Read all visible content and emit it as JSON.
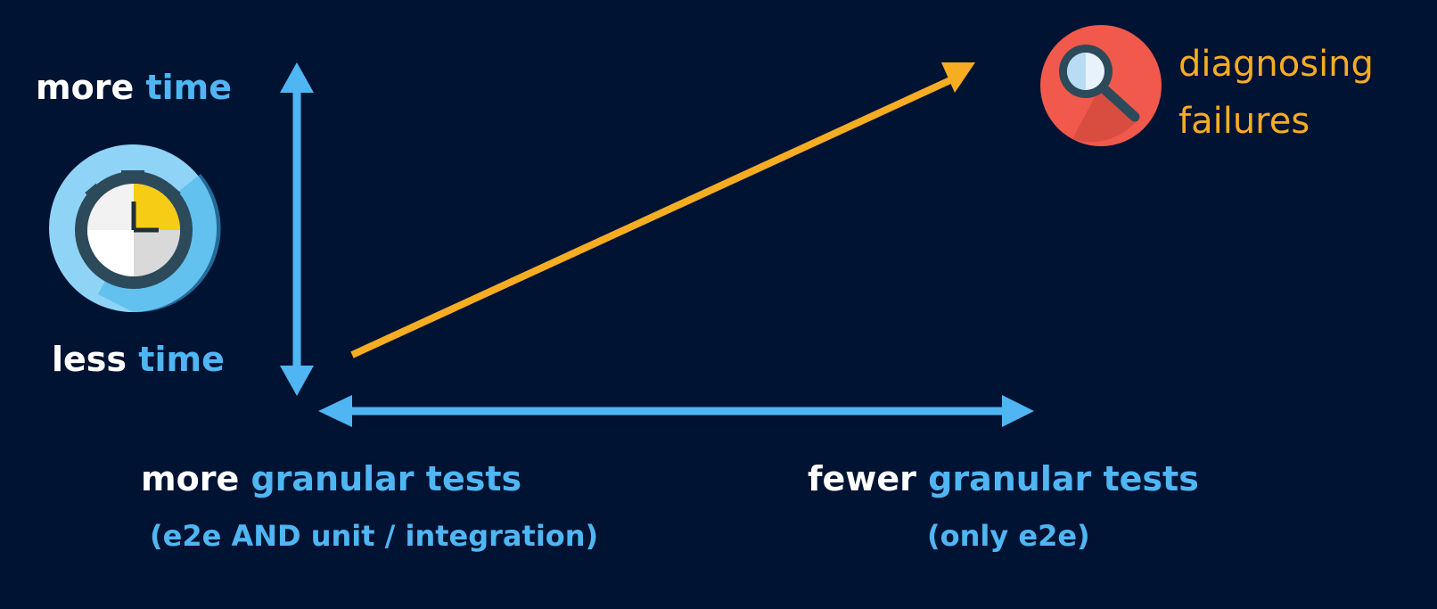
{
  "y_axis": {
    "top": {
      "prefix": "more",
      "highlight": "time"
    },
    "bottom": {
      "prefix": "less",
      "highlight": "time"
    }
  },
  "x_axis": {
    "left": {
      "prefix": "more",
      "highlight": "granular tests",
      "note": "(e2e AND unit / integration)"
    },
    "right": {
      "prefix": "fewer",
      "highlight": "granular tests",
      "note": "(only e2e)"
    }
  },
  "trend": {
    "label_line1": "diagnosing",
    "label_line2": "failures",
    "direction": "increasing"
  },
  "icons": [
    "stopwatch-icon",
    "magnifier-icon"
  ],
  "colors": {
    "background": "#011333",
    "axis": "#4fb6f3",
    "trend": "#f6ad22",
    "text_primary": "#ffffff",
    "text_accent": "#4fb6f3"
  }
}
